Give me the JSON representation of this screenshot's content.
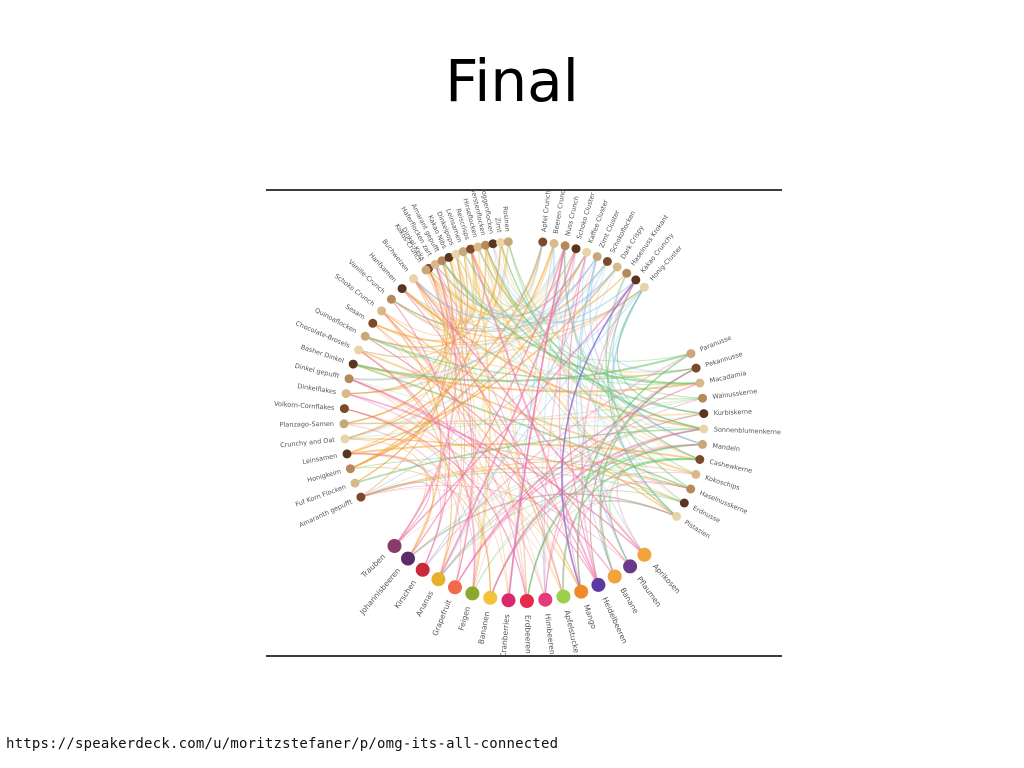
{
  "slide": {
    "title": "Final",
    "footer_url": "https://speakerdeck.com/u/moritzstefaner/p/omg-its-all-connected"
  },
  "colors": {
    "grains": "#f2a33a",
    "flakes": "#f4c76a",
    "nuts": "#66c26a",
    "fruits": "#ef6aa4",
    "clusters": "#8fc3ea",
    "accent_purple": "#8a6fd8",
    "rule": "#3b3b3b"
  },
  "diagram": {
    "groups": [
      {
        "id": "flakes",
        "color": "#f4c76a",
        "nodes": [
          "Dinkel-Keks",
          "Haferflocken zart",
          "Amarant gepufft",
          "Kakao Nibs",
          "Dinkelpops",
          "Leinsamen",
          "Reiscrisps",
          "Hirseflocken",
          "Gerstenflocken",
          "Roggenflocken",
          "Zimt",
          "Rosinen"
        ]
      },
      {
        "id": "grains",
        "color": "#f2a33a",
        "nodes": [
          "Amaranth gepufft",
          "Fuf Korn Flocken",
          "Honigkeim",
          "Leinsamen",
          "Crunchy and Oat",
          "Planzago-Samen",
          "Volkorn-Cornflakes",
          "Dinkelflakes",
          "Dinkel gepufft",
          "Basher Dinkel",
          "Chocolate-Brosels",
          "Quinoaflocken",
          "Sesam",
          "Schoko Crunch",
          "Vanille-Crunch",
          "Hanfsamen",
          "Buchweizen",
          "Kokos-Crunch"
        ]
      },
      {
        "id": "clusters",
        "color": "#8fc3ea",
        "nodes": [
          "Apfel Crunch",
          "Beeren Crunch",
          "Nuss Crunch",
          "Schoko Cluster",
          "Kaffee Cluster",
          "Zimt Cluster",
          "Schokoflocken",
          "Dark Crispy",
          "Haselnuss Krokant",
          "Kakao Crunchy",
          "Honig-Cluster"
        ]
      },
      {
        "id": "nuts",
        "color": "#66c26a",
        "nodes": [
          "Paranusse",
          "Pekannusse",
          "Macadamia",
          "Walnusskerne",
          "Kurbiskerne",
          "Sonnenblumenkerne",
          "Mandeln",
          "Cashewkerne",
          "Kokoschips",
          "Haselnusskerne",
          "Erdnusse",
          "Pistazien"
        ]
      },
      {
        "id": "fruits",
        "color": "#ef6aa4",
        "nodes": [
          "Aprikosen",
          "Pflaumen",
          "Banane",
          "Heidelbeeren",
          "Mango",
          "Apfelstucke",
          "Himbeeren",
          "Erdbeeren",
          "Cranberries",
          "Bananen",
          "Feigen",
          "Grapefruit",
          "Ananas",
          "Kirschen",
          "Johannisbeeren",
          "Trauben"
        ]
      }
    ]
  }
}
